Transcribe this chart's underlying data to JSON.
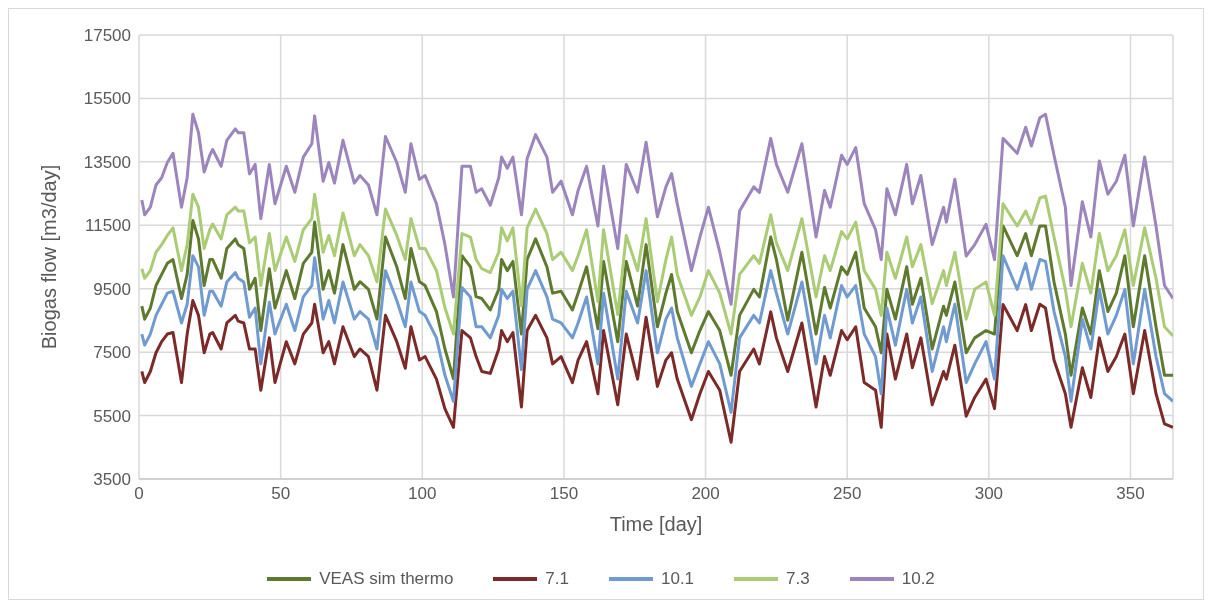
{
  "chart_data": {
    "type": "line",
    "xlabel": "Time [day]",
    "ylabel": "Biogas flow [m3/day]",
    "xlim": [
      0,
      365
    ],
    "xticks": [
      0,
      50,
      100,
      150,
      200,
      250,
      300,
      350
    ],
    "ylim": [
      3500,
      17500
    ],
    "yticks": [
      3500,
      5500,
      7500,
      9500,
      11500,
      13500,
      15500,
      17500
    ],
    "grid": true,
    "legend": "bottom",
    "marker": "none",
    "line_style": "solid",
    "x": [
      1,
      2,
      4,
      6,
      8,
      10,
      12,
      15,
      17,
      19,
      21,
      23,
      25,
      26,
      29,
      31,
      34,
      35,
      37,
      39,
      41,
      43,
      46,
      48,
      52,
      55,
      58,
      61,
      62,
      65,
      67,
      69,
      72,
      76,
      78,
      81,
      84,
      87,
      91,
      94,
      96,
      99,
      101,
      105,
      108,
      111,
      114,
      117,
      119,
      121,
      124,
      127,
      128,
      130,
      132,
      135,
      137,
      140,
      144,
      146,
      149,
      153,
      155,
      158,
      162,
      164,
      169,
      172,
      176,
      179,
      183,
      186,
      188,
      190,
      195,
      198,
      201,
      205,
      209,
      212,
      217,
      219,
      223,
      225,
      229,
      234,
      239,
      242,
      244,
      248,
      250,
      253,
      256,
      260,
      262,
      264,
      267,
      271,
      273,
      276,
      280,
      284,
      285,
      288,
      292,
      295,
      299,
      302,
      305,
      310,
      313,
      315,
      318,
      320,
      323,
      327,
      329,
      333,
      336,
      339,
      342,
      345,
      348,
      351,
      355,
      359,
      362,
      365
    ],
    "series": [
      {
        "name": "VEAS sim thermo",
        "color": "#5e7a2f",
        "values": [
          8950,
          8540,
          8890,
          9600,
          9950,
          10300,
          10420,
          9190,
          9950,
          11650,
          11070,
          9600,
          10420,
          10420,
          9830,
          10770,
          11070,
          10890,
          10770,
          9480,
          9830,
          8180,
          10130,
          8890,
          10070,
          9190,
          10300,
          10650,
          11600,
          9480,
          10070,
          9360,
          10890,
          9480,
          9720,
          9480,
          8540,
          11130,
          10190,
          9190,
          10770,
          9720,
          9600,
          8780,
          7600,
          6660,
          10540,
          10190,
          9250,
          9190,
          8830,
          9480,
          10420,
          10070,
          10360,
          8070,
          10420,
          11070,
          10190,
          9360,
          9420,
          8830,
          9360,
          10190,
          8240,
          10360,
          7830,
          10360,
          8950,
          10890,
          8300,
          9360,
          9950,
          8780,
          7480,
          8180,
          8780,
          8180,
          6770,
          8660,
          9480,
          9240,
          11130,
          10420,
          8510,
          10650,
          8070,
          9540,
          8890,
          10190,
          9950,
          10650,
          8890,
          8300,
          7480,
          9480,
          8540,
          10190,
          9010,
          9830,
          7600,
          8950,
          8660,
          9710,
          7480,
          7950,
          8180,
          8070,
          11480,
          10540,
          11240,
          10540,
          11480,
          11480,
          9710,
          8070,
          6770,
          8890,
          8070,
          10070,
          8780,
          9360,
          10540,
          8300,
          10540,
          8300,
          6770,
          6770
        ]
      },
      {
        "name": "7.1",
        "color": "#7b2a28",
        "values": [
          6890,
          6540,
          6890,
          7480,
          7830,
          8070,
          8120,
          6540,
          8070,
          9130,
          8660,
          7480,
          8070,
          8120,
          7600,
          8420,
          8660,
          8480,
          8420,
          7600,
          7600,
          6300,
          7950,
          6540,
          7830,
          7130,
          8070,
          8420,
          9010,
          7480,
          7830,
          7130,
          8300,
          7360,
          7600,
          7360,
          6300,
          8660,
          7830,
          6990,
          8300,
          7250,
          7360,
          6650,
          5710,
          5130,
          8180,
          7950,
          7360,
          6890,
          6830,
          7600,
          8180,
          7830,
          8120,
          5770,
          8180,
          8660,
          7950,
          7130,
          7360,
          6540,
          7250,
          7830,
          6190,
          8180,
          5840,
          8070,
          6650,
          8600,
          6420,
          7250,
          7480,
          6650,
          5370,
          6190,
          6890,
          6300,
          4660,
          6890,
          7600,
          7130,
          8770,
          7950,
          6890,
          8420,
          5770,
          7360,
          6770,
          8180,
          7890,
          8300,
          6540,
          6300,
          5130,
          8070,
          6650,
          8070,
          7010,
          7950,
          5840,
          6890,
          6650,
          7720,
          5480,
          6070,
          6650,
          5720,
          9000,
          8180,
          9000,
          8180,
          9010,
          8890,
          7250,
          6190,
          5130,
          7010,
          6070,
          7950,
          6890,
          7360,
          8070,
          6190,
          8180,
          6190,
          5240,
          5130
        ]
      },
      {
        "name": "10.1",
        "color": "#6f9bd1",
        "values": [
          8070,
          7720,
          8070,
          8660,
          9010,
          9360,
          9420,
          8420,
          9010,
          10540,
          10190,
          8660,
          9420,
          9420,
          8950,
          9710,
          10010,
          9830,
          9710,
          8600,
          8890,
          7130,
          9070,
          8070,
          9010,
          8180,
          9240,
          9600,
          10480,
          8540,
          9130,
          8420,
          9710,
          8540,
          8780,
          8540,
          7600,
          10070,
          9130,
          8300,
          9710,
          8780,
          8660,
          7950,
          6770,
          5950,
          9540,
          9240,
          8300,
          8300,
          7950,
          8660,
          9480,
          9190,
          9420,
          6950,
          9480,
          10070,
          9240,
          8540,
          8420,
          7950,
          8420,
          9240,
          7130,
          9360,
          6650,
          9420,
          8420,
          10070,
          7480,
          8540,
          8890,
          7950,
          6420,
          7130,
          7830,
          7130,
          5600,
          7950,
          8660,
          8420,
          10070,
          9360,
          8070,
          9710,
          7130,
          8660,
          7950,
          9600,
          9240,
          9600,
          8070,
          7360,
          6190,
          8890,
          7720,
          9480,
          8420,
          9240,
          6890,
          8300,
          7830,
          9010,
          6540,
          7130,
          7830,
          6650,
          10540,
          9480,
          10300,
          9480,
          10420,
          10360,
          8780,
          7360,
          5950,
          8540,
          7600,
          9480,
          8070,
          8660,
          9480,
          7130,
          9480,
          7360,
          6190,
          5950
        ]
      },
      {
        "name": "7.3",
        "color": "#a9cc75",
        "values": [
          10130,
          9830,
          10070,
          10650,
          10890,
          11180,
          11420,
          10070,
          10890,
          12480,
          12070,
          10770,
          11360,
          11540,
          11070,
          11830,
          12070,
          11950,
          11950,
          10950,
          11130,
          9600,
          11240,
          10070,
          11130,
          10360,
          11360,
          11710,
          12480,
          10650,
          11180,
          10540,
          11890,
          10540,
          10890,
          10540,
          9720,
          12010,
          11180,
          10420,
          11710,
          10770,
          10770,
          10070,
          8900,
          8070,
          11240,
          11130,
          10420,
          10130,
          10010,
          10650,
          11420,
          11010,
          11420,
          8960,
          11420,
          12010,
          11240,
          10420,
          10650,
          10070,
          10540,
          11360,
          9100,
          11360,
          8690,
          11180,
          10070,
          11710,
          9090,
          10420,
          11130,
          9950,
          8660,
          9240,
          10070,
          9360,
          8070,
          9950,
          10540,
          10300,
          11830,
          10950,
          10070,
          11710,
          9240,
          10540,
          10070,
          11300,
          11070,
          11600,
          10070,
          9480,
          8660,
          10650,
          9830,
          11130,
          10190,
          10890,
          9030,
          10070,
          9600,
          10650,
          8540,
          9480,
          9710,
          8660,
          12180,
          11480,
          11950,
          11540,
          12360,
          12420,
          11130,
          9480,
          8300,
          10300,
          9360,
          11240,
          10070,
          10540,
          11360,
          9600,
          11420,
          9830,
          8300,
          8010
        ]
      },
      {
        "name": "10.2",
        "color": "#9c85bd",
        "values": [
          12300,
          11830,
          12070,
          12770,
          13000,
          13480,
          13770,
          12070,
          13000,
          15000,
          14420,
          13180,
          13710,
          13890,
          13360,
          14180,
          14540,
          14420,
          14420,
          13120,
          13420,
          11710,
          13420,
          12180,
          13360,
          12540,
          13650,
          14070,
          14950,
          12890,
          13480,
          12830,
          14180,
          12830,
          13070,
          12770,
          11830,
          14300,
          13480,
          12540,
          14070,
          12950,
          13070,
          12180,
          10890,
          9240,
          13360,
          13360,
          12540,
          12650,
          12130,
          13000,
          13650,
          13300,
          13650,
          11830,
          13600,
          14360,
          13650,
          12540,
          12890,
          11830,
          12600,
          13360,
          11480,
          13360,
          10770,
          13420,
          12540,
          14120,
          11770,
          12710,
          13130,
          12180,
          10070,
          11130,
          12070,
          10660,
          9010,
          11950,
          12710,
          12540,
          14240,
          13420,
          12540,
          14070,
          11130,
          12600,
          12070,
          13710,
          13420,
          13950,
          12180,
          11360,
          10420,
          12650,
          11830,
          13420,
          12180,
          13070,
          10890,
          12070,
          11600,
          12950,
          10530,
          10890,
          11530,
          10420,
          14240,
          13770,
          14590,
          14000,
          14890,
          15000,
          13710,
          12070,
          9600,
          12240,
          11130,
          13530,
          12480,
          12890,
          13710,
          11480,
          13650,
          11480,
          9600,
          9190
        ]
      }
    ]
  }
}
